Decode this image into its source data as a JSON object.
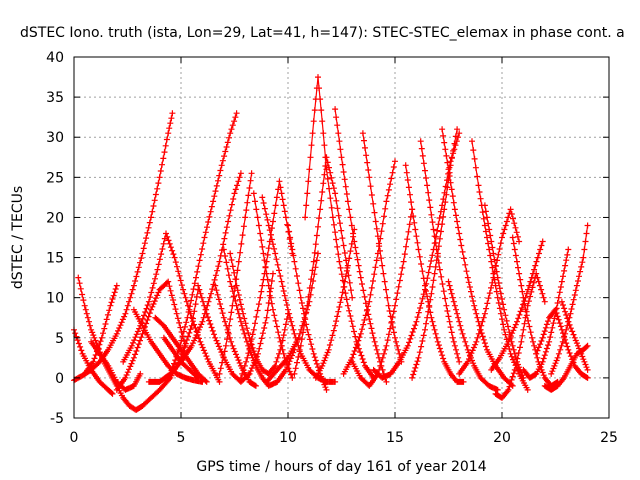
{
  "chart_data": {
    "type": "scatter",
    "title": "dSTEC Iono. truth (ista, Lon=29, Lat=41, h=147): STEC-STEC_elemax in phase cont. a",
    "xlabel": "GPS time / hours of day 161 of year 2014",
    "ylabel": "dSTEC  / TECUs",
    "xlim": [
      0,
      25
    ],
    "ylim": [
      -5,
      40
    ],
    "xticks": [
      "0",
      "5",
      "10",
      "15",
      "20",
      "25"
    ],
    "yticks": [
      "-5",
      "0",
      "5",
      "10",
      "15",
      "20",
      "25",
      "30",
      "35",
      "40"
    ],
    "grid": true,
    "marker": "plus",
    "color": "#ff0000",
    "series": [
      {
        "x": [
          0.0,
          0.4,
          0.8,
          1.2,
          1.6,
          2.0,
          2.4,
          2.8,
          3.2,
          3.6,
          4.0,
          4.4,
          4.6
        ],
        "y": [
          -0.3,
          0.3,
          1.0,
          2.0,
          3.5,
          5.5,
          8.0,
          11.5,
          15.5,
          20.0,
          25.0,
          30.5,
          33.0
        ]
      },
      {
        "x": [
          0.0,
          0.4,
          0.8,
          1.2,
          1.6,
          1.8
        ],
        "y": [
          6.0,
          3.0,
          1.0,
          -0.5,
          -1.5,
          -2.0
        ]
      },
      {
        "x": [
          0.2,
          0.5,
          0.8,
          1.1,
          1.4,
          1.7,
          2.0,
          2.3,
          2.6,
          2.9,
          3.2,
          3.6,
          4.0,
          4.5,
          5.0,
          5.5,
          5.8
        ],
        "y": [
          12.5,
          9.0,
          6.0,
          4.0,
          2.0,
          0.5,
          -1.0,
          -2.5,
          -3.5,
          -4.0,
          -3.5,
          -2.5,
          -1.5,
          0.0,
          2.5,
          6.5,
          11.0
        ]
      },
      {
        "x": [
          0.5,
          0.9,
          1.3,
          1.7,
          2.0
        ],
        "y": [
          0.5,
          2.0,
          5.0,
          9.0,
          11.5
        ]
      },
      {
        "x": [
          0.8,
          1.2,
          1.6,
          2.0,
          2.4,
          2.8,
          3.1
        ],
        "y": [
          4.5,
          3.0,
          1.5,
          -0.5,
          -1.5,
          -1.0,
          0.5
        ]
      },
      {
        "x": [
          2.0,
          2.4,
          2.8,
          3.2,
          3.6,
          4.0,
          4.4,
          4.8,
          5.2
        ],
        "y": [
          -1.5,
          0.0,
          2.5,
          5.5,
          8.5,
          11.0,
          12.0,
          8.0,
          4.0
        ]
      },
      {
        "x": [
          2.3,
          2.7,
          3.1,
          3.5,
          3.9,
          4.3,
          4.7,
          5.1,
          5.5,
          5.9,
          6.3,
          6.8
        ],
        "y": [
          2.0,
          4.0,
          6.5,
          9.5,
          13.5,
          18.0,
          15.0,
          11.0,
          7.5,
          4.5,
          2.0,
          -0.5
        ]
      },
      {
        "x": [
          2.8,
          3.2,
          3.6,
          4.0,
          4.4,
          4.8,
          5.2,
          5.6,
          6.0
        ],
        "y": [
          8.5,
          6.5,
          4.5,
          3.0,
          1.5,
          0.5,
          0.0,
          -0.3,
          -0.5
        ]
      },
      {
        "x": [
          3.5,
          4.0,
          4.5,
          5.0,
          5.5,
          6.0,
          6.4,
          6.8,
          7.2,
          7.5,
          7.8
        ],
        "y": [
          -0.5,
          -0.5,
          0.5,
          2.0,
          4.0,
          7.0,
          10.5,
          14.5,
          19.5,
          23.0,
          25.5
        ]
      },
      {
        "x": [
          3.8,
          4.2,
          4.6,
          5.0,
          5.4,
          5.8,
          6.2
        ],
        "y": [
          7.5,
          6.5,
          5.0,
          3.5,
          2.0,
          0.5,
          -0.5
        ]
      },
      {
        "x": [
          4.2,
          4.6,
          5.0,
          5.4,
          5.8
        ],
        "y": [
          5.0,
          3.5,
          2.0,
          1.0,
          0.0
        ]
      },
      {
        "x": [
          4.5,
          4.9,
          5.3,
          5.7,
          6.1,
          6.5,
          6.9,
          7.3,
          7.6
        ],
        "y": [
          0.5,
          3.5,
          7.5,
          12.5,
          17.5,
          22.0,
          26.5,
          30.5,
          33.0
        ]
      },
      {
        "x": [
          5.8,
          6.2,
          6.6,
          7.0,
          7.4,
          7.8,
          8.2,
          8.6,
          9.0,
          9.3
        ],
        "y": [
          11.5,
          8.0,
          5.0,
          2.5,
          0.5,
          -0.5,
          0.5,
          3.0,
          7.5,
          13.0
        ]
      },
      {
        "x": [
          6.6,
          7.0,
          7.4,
          7.8,
          8.2,
          8.5
        ],
        "y": [
          11.5,
          7.5,
          4.0,
          1.5,
          -0.5,
          -1.0
        ]
      },
      {
        "x": [
          6.8,
          7.1,
          7.4,
          7.7,
          8.0,
          8.3
        ],
        "y": [
          0.5,
          4.0,
          9.0,
          14.5,
          20.0,
          25.5
        ]
      },
      {
        "x": [
          7.0,
          7.3,
          7.6,
          7.9,
          8.2,
          8.5,
          8.8,
          9.1,
          9.5,
          9.9,
          10.3
        ],
        "y": [
          16.0,
          12.0,
          9.0,
          6.0,
          3.5,
          1.5,
          0.0,
          -1.0,
          -0.5,
          1.0,
          3.5
        ]
      },
      {
        "x": [
          7.3,
          7.6,
          7.9,
          8.2,
          8.5,
          8.8,
          9.1,
          9.4,
          9.7,
          10.0
        ],
        "y": [
          15.5,
          11.5,
          8.0,
          5.0,
          2.5,
          1.0,
          0.5,
          1.5,
          4.0,
          8.0
        ]
      },
      {
        "x": [
          7.8,
          8.1,
          8.4,
          8.7,
          9.0,
          9.3,
          9.6,
          9.9,
          10.2
        ],
        "y": [
          0.0,
          2.5,
          6.0,
          10.0,
          14.5,
          19.5,
          24.5,
          20.0,
          15.5
        ]
      },
      {
        "x": [
          8.4,
          8.7,
          9.0,
          9.3,
          9.6,
          9.9,
          10.2
        ],
        "y": [
          23.0,
          18.0,
          13.0,
          8.5,
          5.0,
          2.0,
          0.0
        ]
      },
      {
        "x": [
          8.8,
          9.1,
          9.4,
          9.7,
          10.0,
          10.3,
          10.6,
          11.0,
          11.4,
          11.8,
          12.2
        ],
        "y": [
          22.5,
          19.0,
          15.5,
          12.0,
          8.5,
          5.5,
          3.0,
          1.0,
          0.0,
          -0.5,
          -0.5
        ]
      },
      {
        "x": [
          9.0,
          9.5,
          10.0,
          10.5,
          11.0,
          11.4
        ],
        "y": [
          -0.5,
          1.0,
          2.5,
          5.0,
          9.5,
          15.5
        ]
      },
      {
        "x": [
          10.0,
          10.3,
          10.6,
          10.9,
          11.2,
          11.5,
          11.8
        ],
        "y": [
          19.0,
          14.5,
          10.0,
          6.0,
          3.0,
          0.5,
          -1.5
        ]
      },
      {
        "x": [
          10.3,
          10.6,
          10.9,
          11.2,
          11.5,
          11.8,
          12.2,
          12.6,
          13.0
        ],
        "y": [
          0.5,
          4.0,
          9.0,
          14.5,
          21.0,
          27.5,
          23.0,
          16.5,
          10.0
        ]
      },
      {
        "x": [
          10.8,
          11.0,
          11.2,
          11.4,
          11.6,
          11.8,
          12.1,
          12.4,
          12.8,
          13.2,
          13.6,
          14.0
        ],
        "y": [
          20.0,
          26.0,
          32.0,
          37.5,
          32.0,
          26.0,
          20.0,
          14.5,
          9.0,
          4.5,
          1.5,
          0.0
        ]
      },
      {
        "x": [
          11.3,
          11.6,
          11.9,
          12.2,
          12.5,
          12.8,
          13.1
        ],
        "y": [
          0.0,
          1.5,
          3.5,
          6.5,
          10.0,
          14.0,
          18.5
        ]
      },
      {
        "x": [
          12.2,
          12.5,
          12.8,
          13.1,
          13.4,
          13.7,
          14.0,
          14.3,
          14.6
        ],
        "y": [
          33.5,
          27.5,
          22.0,
          17.0,
          12.5,
          8.5,
          5.0,
          2.0,
          -0.5
        ]
      },
      {
        "x": [
          12.6,
          13.0,
          13.4,
          13.8,
          14.2,
          14.6,
          15.0
        ],
        "y": [
          0.5,
          2.5,
          5.5,
          9.5,
          15.5,
          22.0,
          27.0
        ]
      },
      {
        "x": [
          13.0,
          13.4,
          13.8,
          14.2,
          14.6,
          15.0,
          15.4,
          15.8
        ],
        "y": [
          2.0,
          0.0,
          -1.0,
          0.5,
          4.0,
          9.0,
          14.5,
          21.0
        ]
      },
      {
        "x": [
          13.5,
          13.8,
          14.1,
          14.4,
          14.7,
          15.0,
          15.3
        ],
        "y": [
          30.5,
          25.0,
          19.5,
          14.0,
          9.0,
          5.0,
          2.0
        ]
      },
      {
        "x": [
          14.0,
          14.4,
          14.8,
          15.2,
          15.6,
          16.0,
          16.4,
          16.8,
          17.2,
          17.6,
          18.0
        ],
        "y": [
          1.0,
          0.0,
          0.5,
          2.0,
          4.0,
          7.0,
          11.0,
          16.0,
          21.5,
          27.0,
          30.5
        ]
      },
      {
        "x": [
          15.5,
          15.8,
          16.1,
          16.4,
          16.7,
          17.0,
          17.3,
          17.6,
          17.9,
          18.2
        ],
        "y": [
          26.5,
          21.0,
          16.0,
          11.5,
          7.5,
          4.5,
          2.0,
          0.5,
          -0.5,
          -0.5
        ]
      },
      {
        "x": [
          15.8,
          16.1,
          16.4,
          16.7,
          17.0,
          17.3,
          17.6,
          17.9
        ],
        "y": [
          0.0,
          2.5,
          6.0,
          10.5,
          15.5,
          21.0,
          26.5,
          31.0
        ]
      },
      {
        "x": [
          16.2,
          16.5,
          16.8,
          17.1,
          17.4,
          17.7,
          18.0
        ],
        "y": [
          29.5,
          24.0,
          18.5,
          13.5,
          9.0,
          5.0,
          2.0
        ]
      },
      {
        "x": [
          17.2,
          17.5,
          17.8,
          18.1,
          18.4,
          18.7,
          19.0,
          19.3,
          19.7,
          20.1,
          20.5
        ],
        "y": [
          31.0,
          26.0,
          21.0,
          16.5,
          12.5,
          9.0,
          6.0,
          3.5,
          1.5,
          0.0,
          -1.0
        ]
      },
      {
        "x": [
          17.5,
          17.8,
          18.1,
          18.4,
          18.7,
          19.0,
          19.4,
          19.8
        ],
        "y": [
          12.0,
          9.0,
          6.0,
          3.5,
          1.5,
          0.0,
          -1.0,
          -1.5
        ]
      },
      {
        "x": [
          18.0,
          18.4,
          18.8,
          19.2,
          19.6,
          20.0,
          20.4,
          20.8
        ],
        "y": [
          0.5,
          2.0,
          4.5,
          8.0,
          12.5,
          17.5,
          21.0,
          17.0
        ]
      },
      {
        "x": [
          18.6,
          18.9,
          19.2,
          19.5,
          19.8,
          20.1,
          20.4,
          20.8,
          21.2
        ],
        "y": [
          29.5,
          24.0,
          19.0,
          14.5,
          10.0,
          6.0,
          3.0,
          0.5,
          -1.5
        ]
      },
      {
        "x": [
          19.2,
          19.5,
          19.8,
          20.1,
          20.4,
          20.7,
          21.0
        ],
        "y": [
          21.5,
          17.0,
          12.5,
          8.5,
          5.0,
          2.0,
          0.0
        ]
      },
      {
        "x": [
          19.7,
          20.0,
          20.3,
          20.6,
          20.9,
          21.2,
          21.6,
          22.0
        ],
        "y": [
          -2.0,
          -2.5,
          -1.5,
          1.0,
          4.5,
          9.0,
          13.0,
          9.5
        ]
      },
      {
        "x": [
          19.5,
          19.9,
          20.3,
          20.7,
          21.1,
          21.5,
          21.9
        ],
        "y": [
          1.0,
          2.5,
          4.5,
          7.0,
          10.0,
          13.5,
          17.0
        ]
      },
      {
        "x": [
          20.5,
          20.8,
          21.1,
          21.4,
          21.7,
          22.0,
          22.3,
          22.6
        ],
        "y": [
          17.5,
          13.0,
          8.5,
          5.0,
          2.0,
          0.0,
          -1.0,
          -0.5
        ]
      },
      {
        "x": [
          21.0,
          21.3,
          21.6,
          21.9,
          22.2,
          22.5,
          22.8,
          23.1
        ],
        "y": [
          1.0,
          0.0,
          0.5,
          2.0,
          4.5,
          8.0,
          12.0,
          16.0
        ]
      },
      {
        "x": [
          21.6,
          21.9,
          22.2,
          22.5,
          22.8,
          23.1,
          23.4,
          23.7,
          24.0
        ],
        "y": [
          3.0,
          5.0,
          7.5,
          8.5,
          6.0,
          3.5,
          1.5,
          0.5,
          0.0
        ]
      },
      {
        "x": [
          22.0,
          22.3,
          22.6,
          22.9,
          23.2,
          23.5,
          23.8,
          24.0
        ],
        "y": [
          -1.0,
          -1.5,
          -1.0,
          0.0,
          1.5,
          3.0,
          3.5,
          4.0
        ]
      },
      {
        "x": [
          22.3,
          22.6,
          22.9,
          23.2,
          23.5,
          23.8,
          24.0
        ],
        "y": [
          0.5,
          2.5,
          5.0,
          8.0,
          11.5,
          15.0,
          19.0
        ]
      },
      {
        "x": [
          22.8,
          23.1,
          23.4,
          23.7,
          24.0
        ],
        "y": [
          9.5,
          7.0,
          5.0,
          3.0,
          1.0
        ]
      }
    ]
  }
}
